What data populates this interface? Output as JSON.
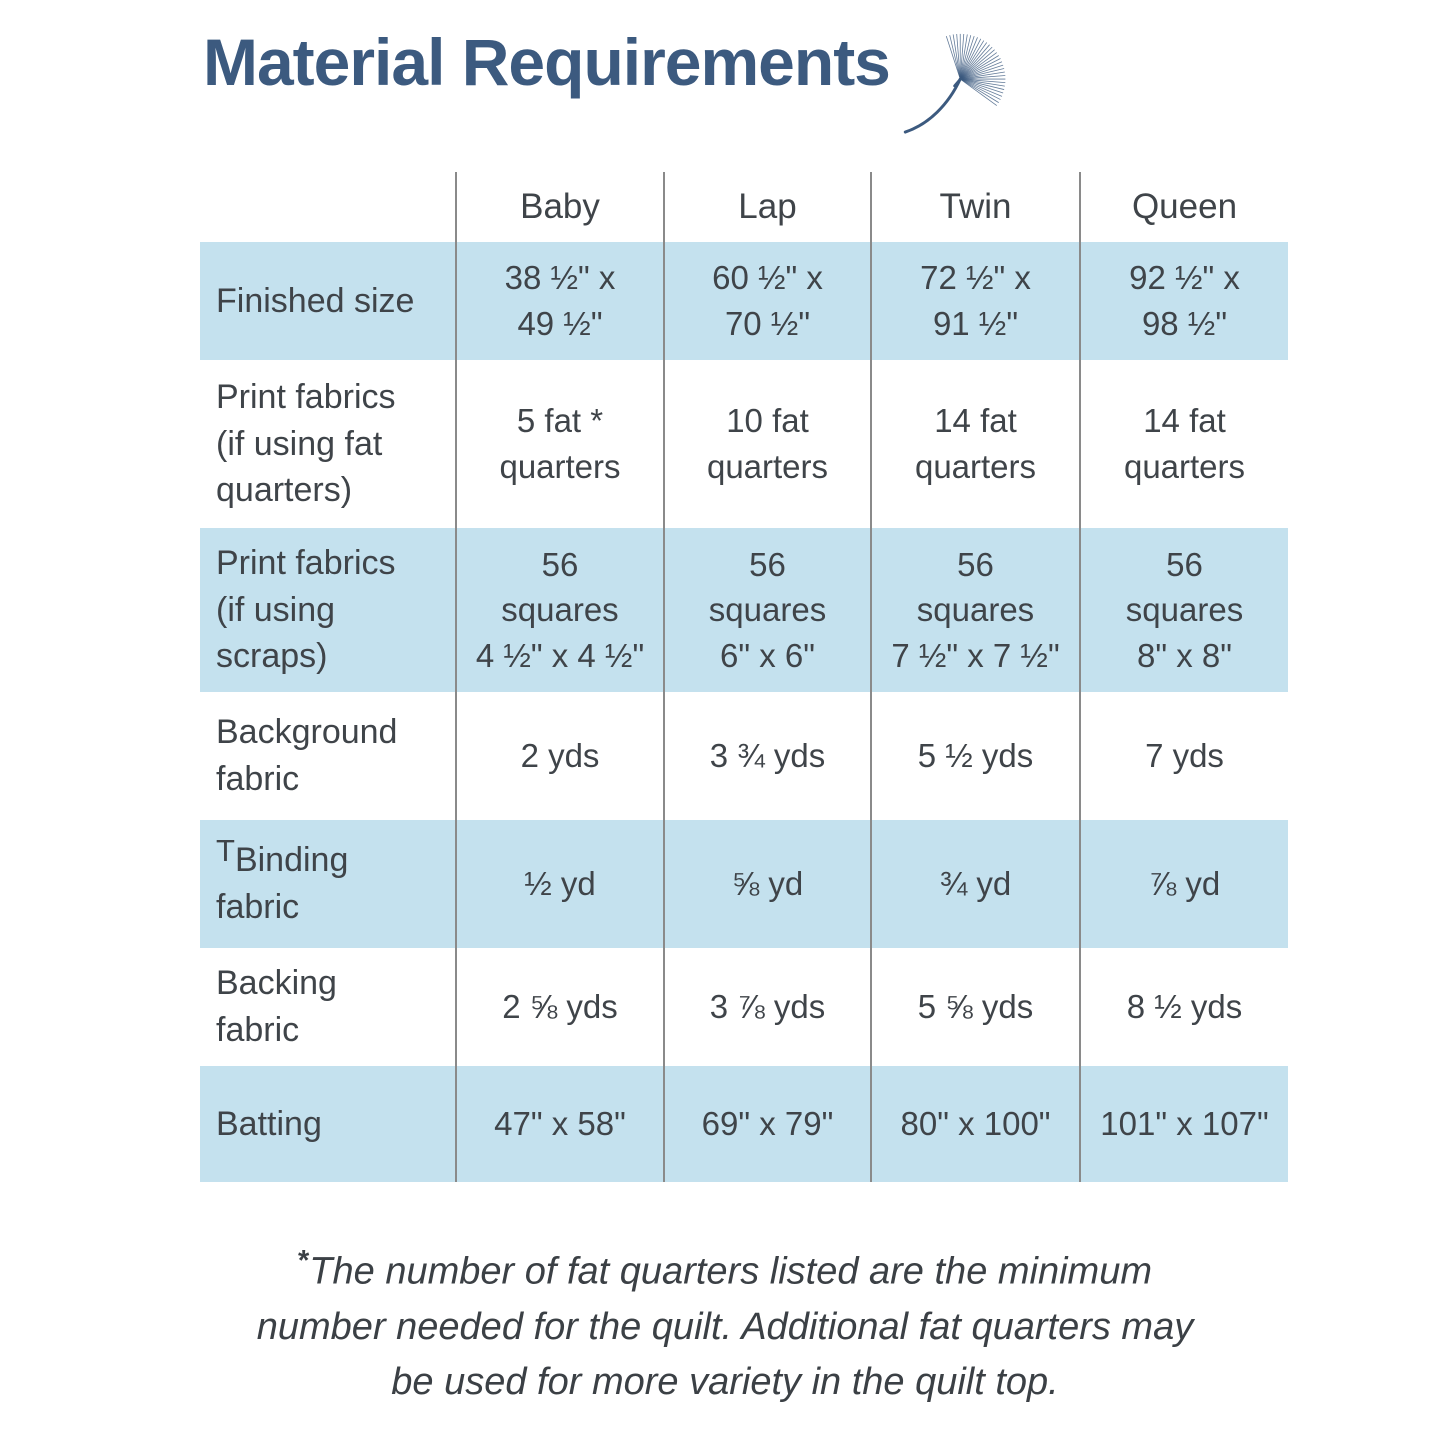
{
  "title": "Material Requirements",
  "icon": "dandelion-seed-icon",
  "colors": {
    "title_blue": "#3c5a7f",
    "band_blue": "#c4e1ee",
    "text_gray": "#3f4449",
    "divider_gray": "#8a8a8a"
  },
  "table": {
    "columns": [
      "Baby",
      "Lap",
      "Twin",
      "Queen"
    ],
    "rows": [
      {
        "label": "Finished size",
        "values": [
          "38 ½\" x\n49 ½\"",
          "60 ½\" x\n70 ½\"",
          "72 ½\" x\n91 ½\"",
          "92 ½\" x\n98 ½\""
        ]
      },
      {
        "label": "Print fabrics\n(if using fat\nquarters)",
        "values": [
          "5 fat *\nquarters",
          "10 fat\nquarters",
          "14 fat\nquarters",
          "14 fat\nquarters"
        ]
      },
      {
        "label": "Print fabrics\n(if using\nscraps)",
        "values": [
          "56\nsquares\n4 ½\" x 4 ½\"",
          "56\nsquares\n6\" x 6\"",
          "56\nsquares\n7 ½\" x 7 ½\"",
          "56\nsquares\n8\" x 8\""
        ]
      },
      {
        "label": "Background\nfabric",
        "values": [
          "2 yds",
          "3 ¾ yds",
          "5 ½ yds",
          "7 yds"
        ]
      },
      {
        "label_prefix": "T",
        "label": "Binding\nfabric",
        "values": [
          "½ yd",
          "⅝ yd",
          "¾ yd",
          "⅞ yd"
        ]
      },
      {
        "label": "Backing\nfabric",
        "values": [
          "2 ⅝ yds",
          "3 ⅞ yds",
          "5 ⅝ yds",
          "8 ½ yds"
        ]
      },
      {
        "label": "Batting",
        "values": [
          "47\" x 58\"",
          "69\" x 79\"",
          "80\" x 100\"",
          "101\" x 107\""
        ]
      }
    ]
  },
  "footnote": {
    "asterisk": "*",
    "text": "The number of fat quarters listed are the minimum\nnumber needed for the quilt.  Additional fat quarters may\nbe used for more variety in the quilt top."
  }
}
